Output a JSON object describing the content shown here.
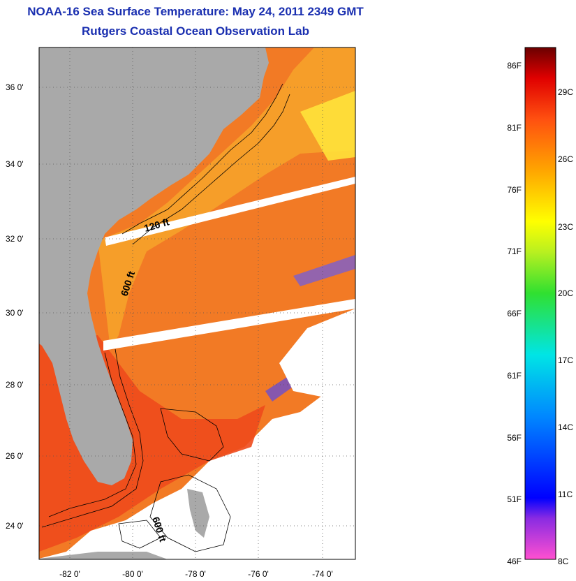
{
  "header": {
    "title": "NOAA-16 Sea Surface Temperature:  May 24, 2011 2349 GMT",
    "subtitle": "Rutgers Coastal Ocean Observation Lab"
  },
  "map": {
    "lat_ticks": [
      "36 0'",
      "34 0'",
      "32 0'",
      "30 0'",
      "28 0'",
      "26 0'",
      "24 0'"
    ],
    "lon_ticks": [
      "-82 0'",
      "-80 0'",
      "-78 0'",
      "-76 0'",
      "-74 0'"
    ],
    "contour_labels": [
      "120 ft",
      "600 ft",
      "600 ft"
    ],
    "colors": {
      "land": "#a9a9a9",
      "no_data": "#ffffff",
      "sst_warm": "#f26a1b",
      "sst_mid": "#f6a623",
      "sst_cool": "#ffd33a"
    }
  },
  "colorbar": {
    "fahrenheit_labels": [
      "86F",
      "81F",
      "76F",
      "71F",
      "66F",
      "61F",
      "56F",
      "51F",
      "46F"
    ],
    "celsius_labels": [
      "29C",
      "26C",
      "23C",
      "20C",
      "17C",
      "14C",
      "11C",
      "8C"
    ],
    "range_f": [
      46,
      86
    ],
    "range_c": [
      8,
      30
    ]
  }
}
